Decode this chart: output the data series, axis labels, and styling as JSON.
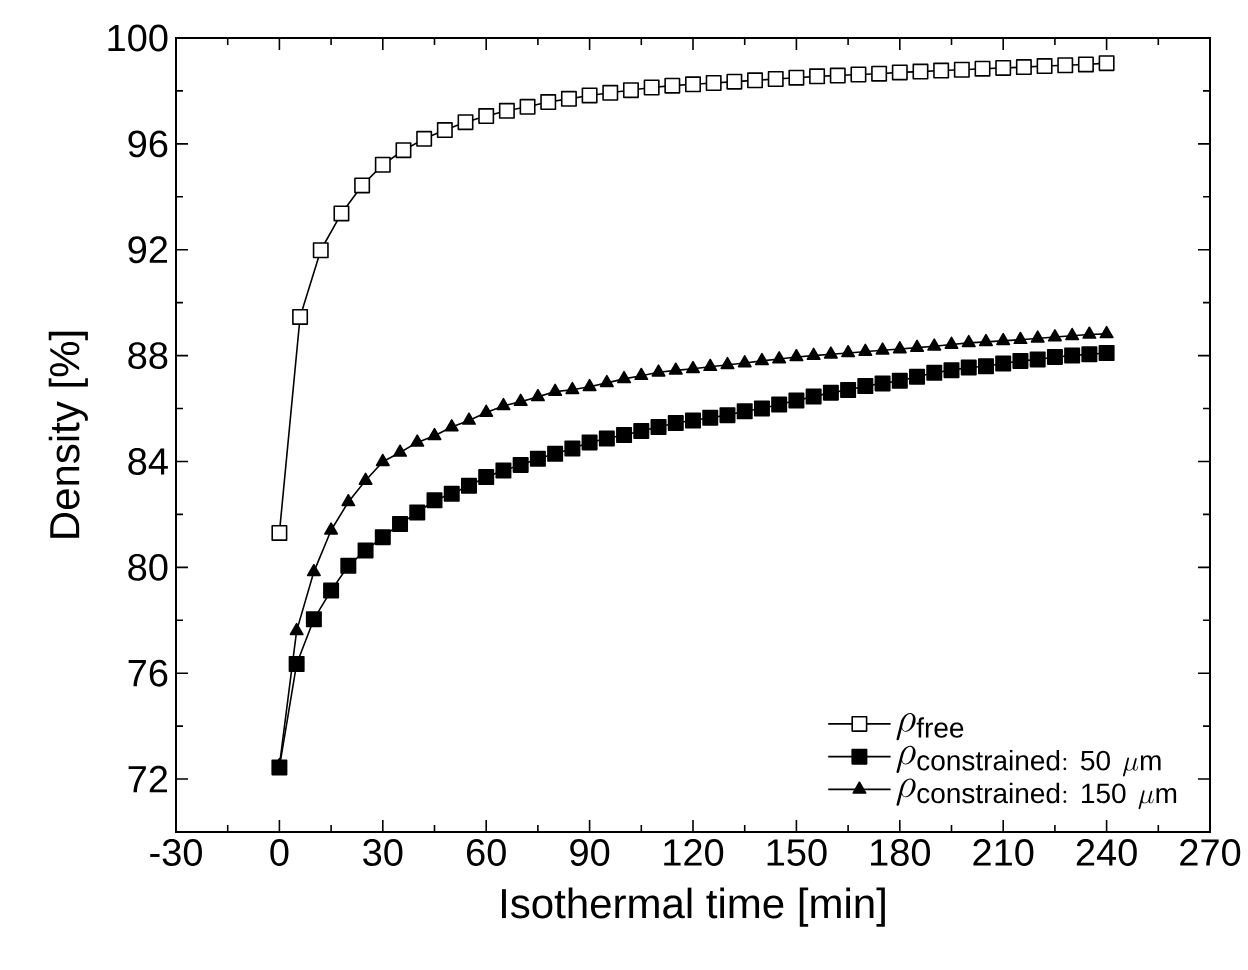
{
  "chart_data": {
    "type": "line",
    "xlabel": "Isothermal time [min]",
    "ylabel": "Density [%]",
    "xlim": [
      -30,
      270
    ],
    "xticks": [
      -30,
      0,
      30,
      60,
      90,
      120,
      150,
      180,
      210,
      240,
      270
    ],
    "ylim": [
      70,
      100
    ],
    "yticks": [
      72,
      76,
      80,
      84,
      88,
      92,
      96,
      100
    ],
    "grid": false,
    "legend": "bottom right",
    "line_style": "solid",
    "series": [
      {
        "name": "\\rho_{\\mathrm{free}}",
        "color": "#ffffff",
        "marker": "square",
        "x": [
          0,
          6,
          12,
          18,
          24,
          30,
          36,
          42,
          48,
          54,
          60,
          66,
          72,
          78,
          84,
          90,
          96,
          102,
          108,
          114,
          120,
          126,
          132,
          138,
          144,
          150,
          156,
          162,
          168,
          174,
          180,
          186,
          192,
          198,
          204,
          210,
          216,
          222,
          228,
          234,
          240
        ],
        "values": [
          81.3,
          89.46,
          91.98,
          93.37,
          94.43,
          95.21,
          95.76,
          96.19,
          96.52,
          96.82,
          97.05,
          97.25,
          97.4,
          97.58,
          97.7,
          97.83,
          97.93,
          98.03,
          98.13,
          98.2,
          98.25,
          98.3,
          98.35,
          98.4,
          98.45,
          98.5,
          98.55,
          98.58,
          98.62,
          98.65,
          98.7,
          98.73,
          98.77,
          98.8,
          98.84,
          98.87,
          98.9,
          98.94,
          98.97,
          99.0,
          99.05
        ]
      },
      {
        "name": "\\rho_{\\mathrm{constrained{:}\\ 50\\ \\mu m}}",
        "color": "#000000",
        "marker": "square",
        "x": [
          0,
          5,
          10,
          15,
          20,
          25,
          30,
          35,
          40,
          45,
          50,
          55,
          60,
          65,
          70,
          75,
          80,
          85,
          90,
          95,
          100,
          105,
          110,
          115,
          120,
          125,
          130,
          135,
          140,
          145,
          150,
          155,
          160,
          165,
          170,
          175,
          180,
          185,
          190,
          195,
          200,
          205,
          210,
          215,
          220,
          225,
          230,
          235,
          240
        ],
        "values": [
          72.44,
          76.35,
          78.04,
          79.12,
          80.06,
          80.64,
          81.14,
          81.64,
          82.07,
          82.53,
          82.78,
          83.08,
          83.41,
          83.66,
          83.87,
          84.1,
          84.29,
          84.49,
          84.72,
          84.87,
          85.0,
          85.15,
          85.3,
          85.45,
          85.55,
          85.65,
          85.75,
          85.9,
          86.0,
          86.15,
          86.3,
          86.45,
          86.6,
          86.7,
          86.85,
          86.95,
          87.05,
          87.2,
          87.35,
          87.45,
          87.55,
          87.6,
          87.7,
          87.8,
          87.85,
          87.95,
          88.0,
          88.05,
          88.1
        ]
      },
      {
        "name": "\\rho_{\\mathrm{constrained{:}\\ 150\\ \\mu m}}",
        "color": "#000000",
        "marker": "triangle",
        "x": [
          0,
          5,
          10,
          15,
          20,
          25,
          30,
          35,
          40,
          45,
          50,
          55,
          60,
          65,
          70,
          75,
          80,
          85,
          90,
          95,
          100,
          105,
          110,
          115,
          120,
          125,
          130,
          135,
          140,
          145,
          150,
          155,
          160,
          165,
          170,
          175,
          180,
          185,
          190,
          195,
          200,
          205,
          210,
          215,
          220,
          225,
          230,
          235,
          240
        ],
        "values": [
          72.5,
          77.6,
          79.83,
          81.4,
          82.47,
          83.28,
          83.99,
          84.34,
          84.72,
          84.97,
          85.3,
          85.55,
          85.85,
          86.1,
          86.26,
          86.44,
          86.64,
          86.71,
          86.82,
          86.97,
          87.12,
          87.24,
          87.37,
          87.44,
          87.5,
          87.58,
          87.65,
          87.72,
          87.8,
          87.87,
          87.95,
          88.0,
          88.05,
          88.1,
          88.15,
          88.2,
          88.25,
          88.3,
          88.35,
          88.42,
          88.48,
          88.52,
          88.56,
          88.6,
          88.65,
          88.7,
          88.75,
          88.8,
          88.82
        ]
      }
    ]
  }
}
